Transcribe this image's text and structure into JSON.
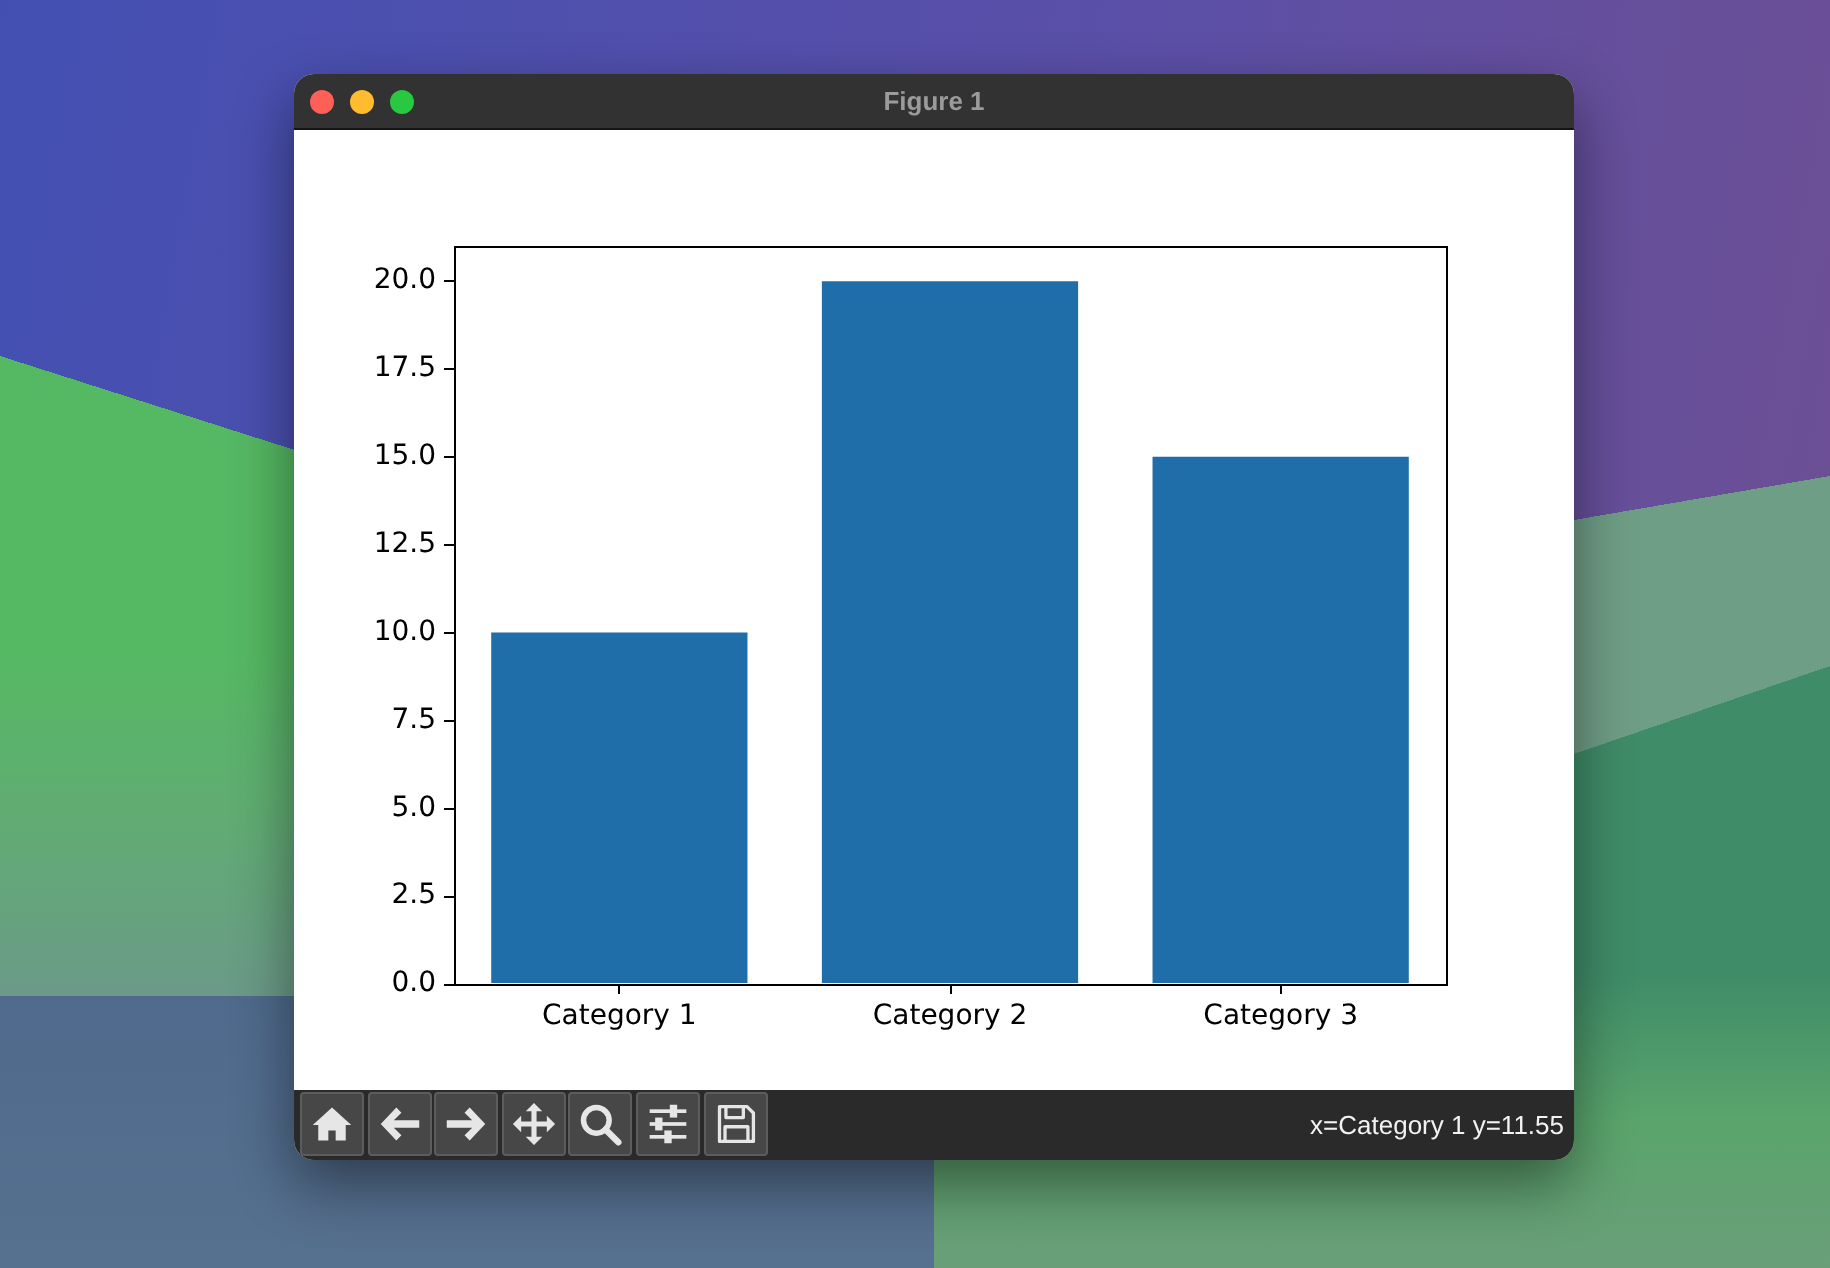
{
  "chart_data": {
    "type": "bar",
    "categories": [
      "Category 1",
      "Category 2",
      "Category 3"
    ],
    "values": [
      10,
      20,
      15
    ],
    "color": "#1f6da9",
    "ylim": [
      0,
      21
    ],
    "yticks": [
      {
        "value": 0,
        "label": "0.0"
      },
      2.5,
      {
        "value": 5,
        "label": "5.0"
      },
      7.5,
      {
        "value": 10,
        "label": "10.0"
      },
      12.5,
      {
        "value": 15,
        "label": "15.0"
      },
      17.5,
      {
        "value": 20,
        "label": "20.0"
      }
    ],
    "grid": false,
    "legend": false,
    "annotations": [
      "Figure 1",
      "x=Category 1 y=11.55"
    ]
  }
}
